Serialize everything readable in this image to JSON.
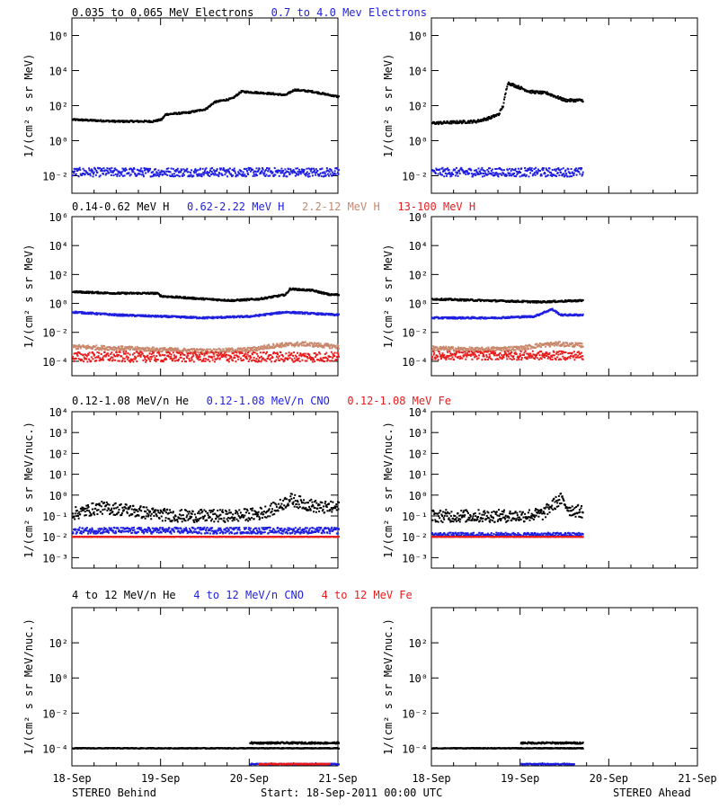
{
  "colors": {
    "black": "#000000",
    "blue": "#1f1fe0",
    "tan": "#c9876b",
    "red": "#e81c1c"
  },
  "footer": {
    "left": "STEREO Behind",
    "center": "Start: 18-Sep-2011 00:00 UTC",
    "right": "STEREO Ahead"
  },
  "x_ticks": [
    "18-Sep",
    "19-Sep",
    "20-Sep",
    "21-Sep"
  ],
  "chart_data": [
    {
      "type": "scatter",
      "title_parts": [
        {
          "text": "0.035 to 0.065 MeV Electrons",
          "color": "black"
        },
        {
          "text": "0.7 to 4.0 Mev Electrons",
          "color": "blue"
        }
      ],
      "ylabel": "1/(cm² s sr MeV)",
      "yscale": "log",
      "ylim_exp": [
        -3,
        7
      ],
      "y_tick_labels": [
        "10⁻²",
        "10⁰",
        "10²",
        "10⁴",
        "10⁶"
      ],
      "y_tick_exps": [
        -2,
        0,
        2,
        4,
        6
      ],
      "xlim_days": [
        0,
        3
      ],
      "behind": {
        "series": [
          {
            "color": "black",
            "x": [
              0,
              0.5,
              0.9,
              1.0,
              1.05,
              1.3,
              1.5,
              1.6,
              1.8,
              1.9,
              2.2,
              2.4,
              2.5,
              2.7,
              3.0
            ],
            "log_y": [
              1.2,
              1.1,
              1.1,
              1.2,
              1.5,
              1.6,
              1.8,
              2.2,
              2.4,
              2.8,
              2.7,
              2.6,
              2.9,
              2.8,
              2.5
            ],
            "noise": 0.05
          },
          {
            "color": "blue",
            "x": [
              0,
              3
            ],
            "log_y": [
              -1.8,
              -1.8
            ],
            "noise": 0.25
          }
        ]
      },
      "ahead": {
        "series": [
          {
            "color": "black",
            "x": [
              0,
              0.5,
              0.65,
              0.75,
              0.8,
              0.85,
              1.0,
              1.1,
              1.3,
              1.4,
              1.5,
              1.7
            ],
            "log_y": [
              1.0,
              1.1,
              1.3,
              1.5,
              2.0,
              3.3,
              3.0,
              2.8,
              2.7,
              2.5,
              2.3,
              2.3
            ],
            "noise": 0.08
          },
          {
            "color": "blue",
            "x": [
              0,
              1.7
            ],
            "log_y": [
              -1.8,
              -1.8
            ],
            "noise": 0.25
          }
        ]
      }
    },
    {
      "type": "scatter",
      "title_parts": [
        {
          "text": "0.14-0.62 MeV H",
          "color": "black"
        },
        {
          "text": "0.62-2.22 MeV H",
          "color": "blue"
        },
        {
          "text": "2.2-12 MeV H",
          "color": "tan"
        },
        {
          "text": "13-100 MeV H",
          "color": "red"
        }
      ],
      "ylabel": "1/(cm² s sr MeV)",
      "yscale": "log",
      "ylim_exp": [
        -5,
        6
      ],
      "y_tick_labels": [
        "10⁻⁴",
        "10⁻²",
        "10⁰",
        "10²",
        "10⁴",
        "10⁶"
      ],
      "y_tick_exps": [
        -4,
        -2,
        0,
        2,
        4,
        6
      ],
      "xlim_days": [
        0,
        3
      ],
      "behind": {
        "series": [
          {
            "color": "black",
            "x": [
              0,
              0.5,
              0.95,
              1.0,
              1.5,
              1.8,
              2.1,
              2.4,
              2.45,
              2.7,
              2.9,
              3.0
            ],
            "log_y": [
              0.8,
              0.7,
              0.7,
              0.5,
              0.3,
              0.2,
              0.3,
              0.6,
              1.0,
              0.9,
              0.6,
              0.6
            ],
            "noise": 0.06
          },
          {
            "color": "blue",
            "x": [
              0,
              0.5,
              1.0,
              1.5,
              2.0,
              2.4,
              2.7,
              3.0
            ],
            "log_y": [
              -0.6,
              -0.8,
              -0.9,
              -1.0,
              -0.9,
              -0.6,
              -0.7,
              -0.8
            ],
            "noise": 0.06
          },
          {
            "color": "tan",
            "x": [
              0,
              0.5,
              1.0,
              1.5,
              2.0,
              2.3,
              2.6,
              2.8,
              3.0
            ],
            "log_y": [
              -3.0,
              -3.1,
              -3.2,
              -3.3,
              -3.2,
              -2.9,
              -2.8,
              -2.9,
              -3.0
            ],
            "noise": 0.15
          },
          {
            "color": "red",
            "x": [
              0,
              3
            ],
            "log_y": [
              -3.7,
              -3.7
            ],
            "noise": 0.35
          }
        ]
      },
      "ahead": {
        "series": [
          {
            "color": "black",
            "x": [
              0,
              0.6,
              1.2,
              1.7
            ],
            "log_y": [
              0.3,
              0.2,
              0.1,
              0.2
            ],
            "noise": 0.06
          },
          {
            "color": "blue",
            "x": [
              0,
              0.7,
              1.15,
              1.35,
              1.45,
              1.7
            ],
            "log_y": [
              -1.0,
              -1.0,
              -0.9,
              -0.4,
              -0.8,
              -0.8
            ],
            "noise": 0.06
          },
          {
            "color": "tan",
            "x": [
              0,
              0.5,
              1.0,
              1.2,
              1.4,
              1.7
            ],
            "log_y": [
              -3.1,
              -3.2,
              -3.1,
              -2.9,
              -2.8,
              -2.9
            ],
            "noise": 0.15
          },
          {
            "color": "red",
            "x": [
              0,
              1.7
            ],
            "log_y": [
              -3.6,
              -3.6
            ],
            "noise": 0.3
          }
        ]
      }
    },
    {
      "type": "scatter",
      "title_parts": [
        {
          "text": "0.12-1.08 MeV/n He",
          "color": "black"
        },
        {
          "text": "0.12-1.08 MeV/n CNO",
          "color": "blue"
        },
        {
          "text": "0.12-1.08 MeV Fe",
          "color": "red"
        }
      ],
      "ylabel": "1/(cm² s sr MeV/nuc.)",
      "yscale": "log",
      "ylim_exp": [
        -3.5,
        4
      ],
      "y_tick_labels": [
        "10⁻³",
        "10⁻²",
        "10⁻¹",
        "10⁰",
        "10¹",
        "10²",
        "10³",
        "10⁴"
      ],
      "y_tick_exps": [
        -3,
        -2,
        -1,
        0,
        1,
        2,
        3,
        4
      ],
      "xlim_days": [
        0,
        3
      ],
      "behind": {
        "series": [
          {
            "color": "black",
            "x": [
              0,
              0.3,
              0.6,
              0.9,
              1.2,
              1.5,
              1.8,
              2.1,
              2.3,
              2.45,
              2.6,
              2.8,
              3.0
            ],
            "log_y": [
              -0.9,
              -0.6,
              -0.7,
              -0.9,
              -1.0,
              -1.0,
              -1.0,
              -0.9,
              -0.6,
              -0.2,
              -0.4,
              -0.6,
              -0.6
            ],
            "noise": 0.3
          },
          {
            "color": "blue",
            "x": [
              0,
              3
            ],
            "log_y": [
              -1.7,
              -1.7
            ],
            "noise": 0.15
          },
          {
            "color": "red",
            "x": [
              0,
              3
            ],
            "log_y": [
              -2.0,
              -2.0
            ],
            "noise": 0.01
          }
        ]
      },
      "ahead": {
        "series": [
          {
            "color": "black",
            "x": [
              0,
              0.5,
              1.0,
              1.25,
              1.35,
              1.45,
              1.55,
              1.7
            ],
            "log_y": [
              -1.0,
              -1.0,
              -1.0,
              -0.9,
              -0.5,
              -0.2,
              -0.7,
              -0.8
            ],
            "noise": 0.3
          },
          {
            "color": "blue",
            "x": [
              0,
              1.7
            ],
            "log_y": [
              -1.9,
              -1.9
            ],
            "noise": 0.1
          },
          {
            "color": "red",
            "x": [
              0,
              1.7
            ],
            "log_y": [
              -2.0,
              -2.0
            ],
            "noise": 0.01
          }
        ]
      }
    },
    {
      "type": "scatter",
      "title_parts": [
        {
          "text": "4 to 12 MeV/n He",
          "color": "black"
        },
        {
          "text": "4 to 12 MeV/n CNO",
          "color": "blue"
        },
        {
          "text": "4 to 12 MeV Fe",
          "color": "red"
        }
      ],
      "ylabel": "1/(cm² s sr MeV/nuc.)",
      "yscale": "log",
      "ylim_exp": [
        -5,
        4
      ],
      "y_tick_labels": [
        "10⁻⁴",
        "10⁻²",
        "10⁰",
        "10²"
      ],
      "y_tick_exps": [
        -4,
        -2,
        0,
        2
      ],
      "xlim_days": [
        0,
        3
      ],
      "behind": {
        "series": [
          {
            "color": "black",
            "x": [
              0,
              3
            ],
            "log_y": [
              -4.0,
              -4.0
            ],
            "noise": 0.02
          },
          {
            "color": "black",
            "x": [
              2.0,
              3.0
            ],
            "log_y": [
              -3.7,
              -3.7
            ],
            "noise": 0.05
          },
          {
            "color": "blue",
            "x": [
              2.0,
              3.0
            ],
            "log_y": [
              -4.9,
              -4.9
            ],
            "noise": 0.03
          },
          {
            "color": "red",
            "x": [
              2.1,
              2.9
            ],
            "log_y": [
              -4.9,
              -4.9
            ],
            "noise": 0.03
          }
        ]
      },
      "ahead": {
        "series": [
          {
            "color": "black",
            "x": [
              0,
              1.7
            ],
            "log_y": [
              -4.0,
              -4.0
            ],
            "noise": 0.02
          },
          {
            "color": "black",
            "x": [
              1.0,
              1.7
            ],
            "log_y": [
              -3.7,
              -3.7
            ],
            "noise": 0.05
          },
          {
            "color": "blue",
            "x": [
              1.0,
              1.6
            ],
            "log_y": [
              -4.9,
              -4.9
            ],
            "noise": 0.03
          }
        ]
      }
    }
  ]
}
